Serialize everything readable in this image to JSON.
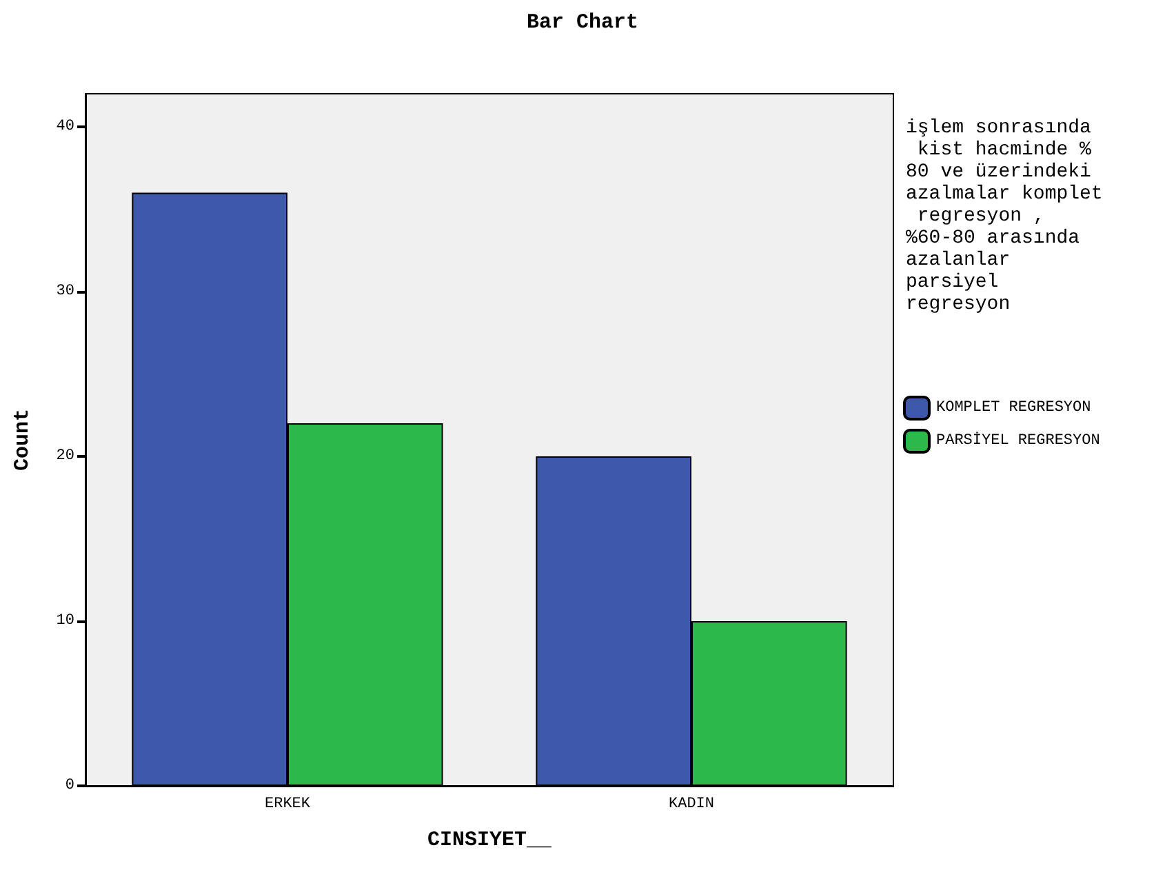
{
  "chart_data": {
    "type": "bar",
    "title": "Bar Chart",
    "xlabel": "CINSIYET__",
    "ylabel": "Count",
    "legend_title": "işlem sonrasında kist hacminde % 80 ve üzerindeki azalmalar komplet regresyon ,%60-80 arasında azalanlar parsiyel regresyon",
    "categories": [
      "ERKEK",
      "KADIN"
    ],
    "series": [
      {
        "name": "KOMPLET REGRESYON",
        "color": "#3e58ac",
        "values": [
          36,
          20
        ]
      },
      {
        "name": "PARSİYEL REGRESYON",
        "color": "#2db84b",
        "values": [
          22,
          10
        ]
      }
    ],
    "ylim": [
      0,
      42
    ],
    "yticks": [
      0,
      10,
      20,
      30,
      40
    ],
    "grid": false,
    "legend": "right"
  }
}
